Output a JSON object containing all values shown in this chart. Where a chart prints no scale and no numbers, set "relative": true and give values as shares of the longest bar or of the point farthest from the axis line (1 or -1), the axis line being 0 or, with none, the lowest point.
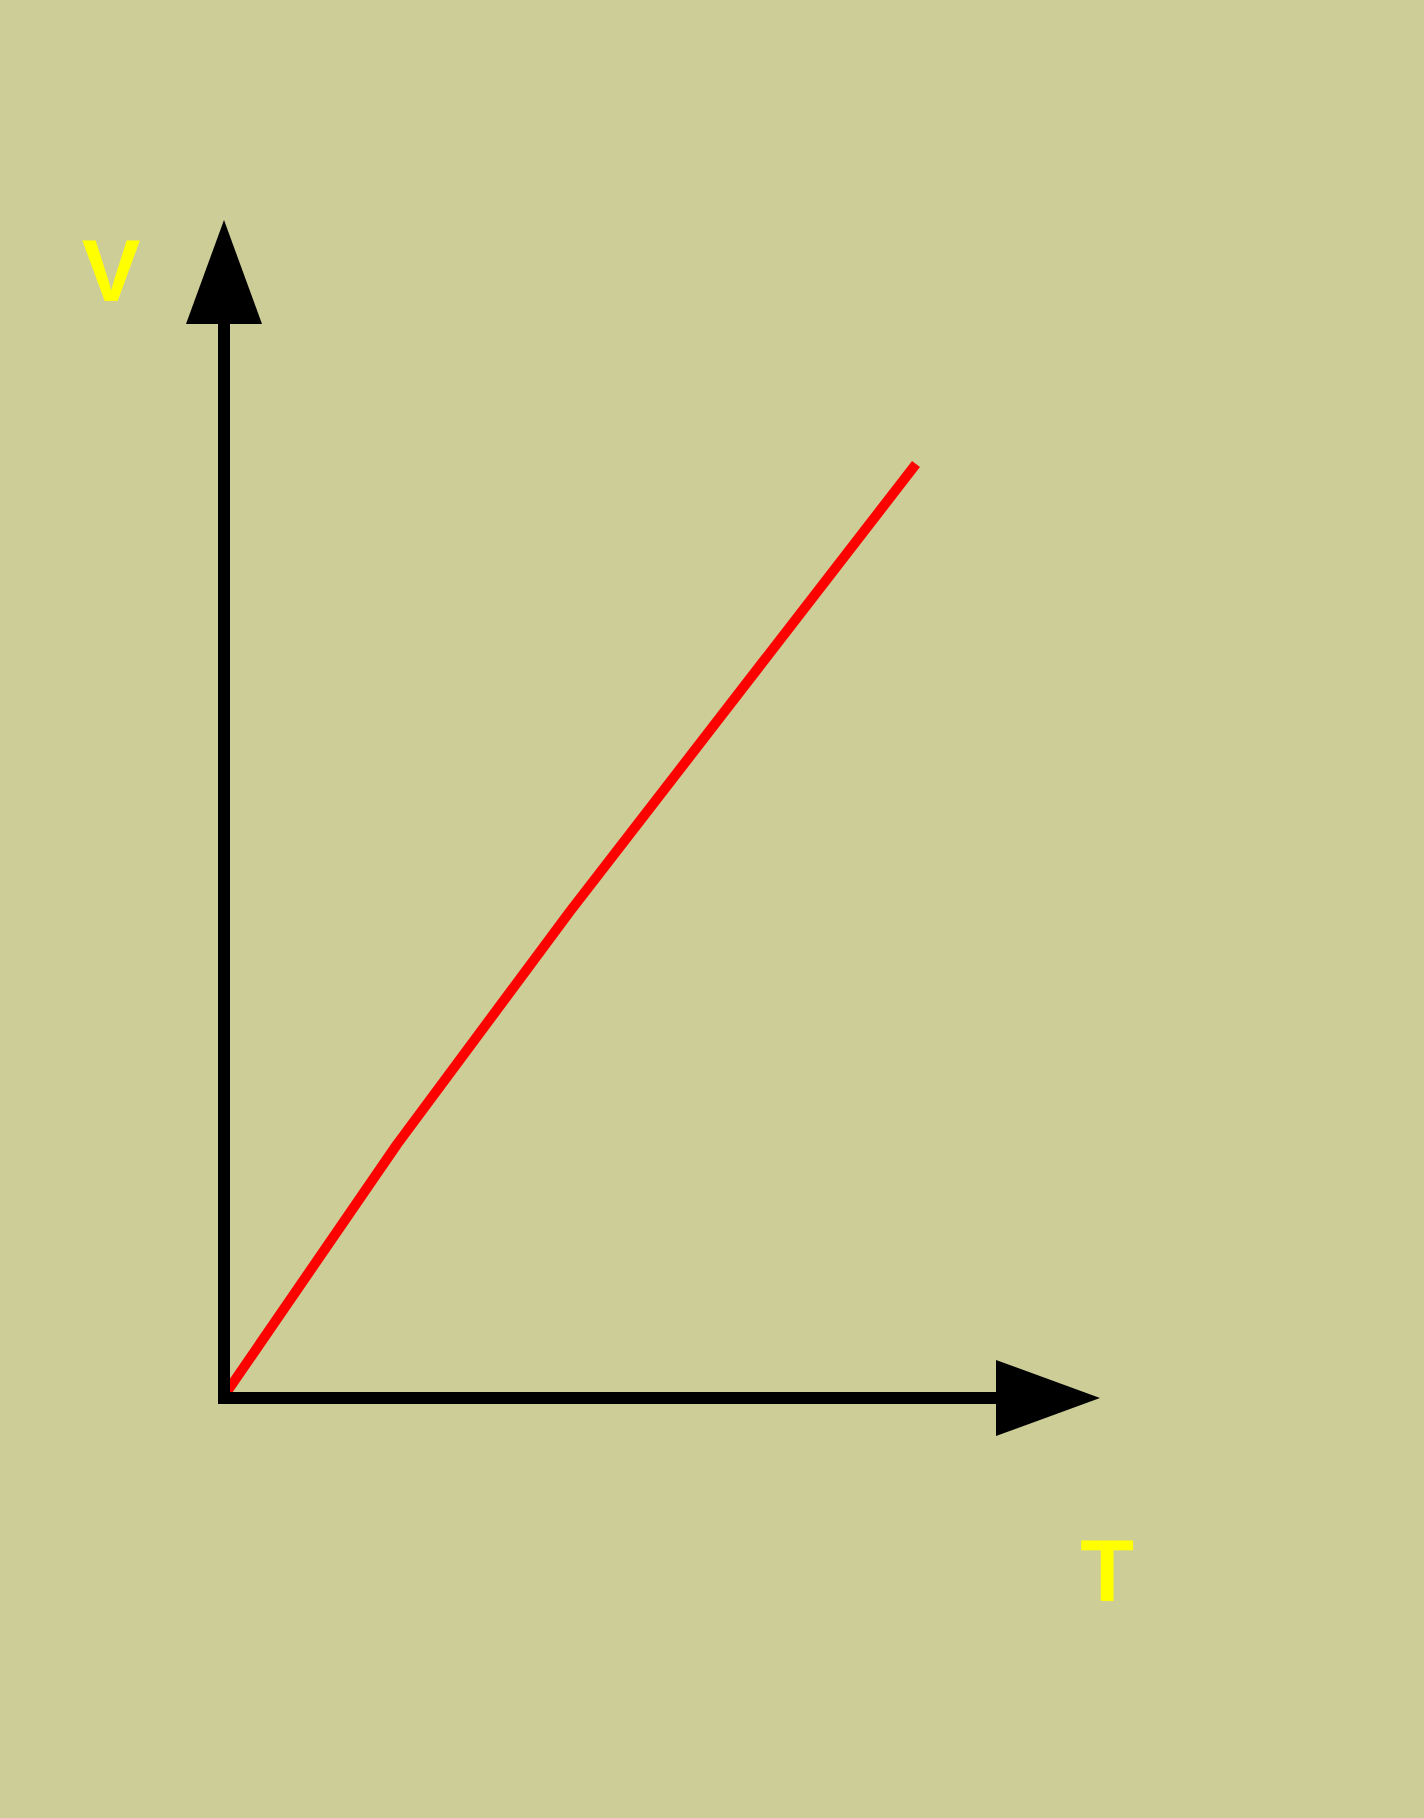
{
  "chart_data": {
    "type": "line",
    "xlabel": "T",
    "ylabel": "V",
    "relative": true,
    "categories": [
      null,
      null,
      null,
      null,
      null
    ],
    "series": [
      {
        "color": "#ff0000",
        "values": [
          0,
          0.27,
          0.52,
          0.76,
          1
        ]
      }
    ]
  }
}
